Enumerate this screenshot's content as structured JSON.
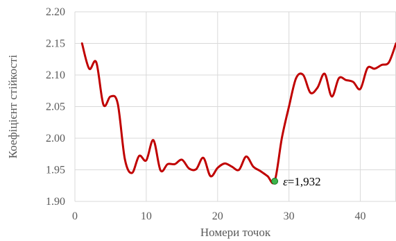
{
  "chart_data": {
    "type": "line",
    "xlabel": "Номери точок",
    "ylabel": "Коефіцієнт стійкості",
    "xlim": [
      0,
      45
    ],
    "ylim": [
      1.9,
      2.2
    ],
    "x_ticks": [
      0,
      10,
      20,
      30,
      40
    ],
    "x_tick_labels": [
      "0",
      "10",
      "20",
      "30",
      "40"
    ],
    "y_ticks": [
      1.9,
      1.95,
      2.0,
      2.05,
      2.1,
      2.15,
      2.2
    ],
    "y_tick_labels": [
      "1.90",
      "1.95",
      "2.00",
      "2.05",
      "2.10",
      "2.15",
      "2.20"
    ],
    "grid": {
      "x": true,
      "y": true
    },
    "legend": "none",
    "series": [
      {
        "color": "#C00000",
        "x": [
          1,
          2,
          3,
          4,
          5,
          6,
          7,
          8,
          9,
          10,
          11,
          12,
          13,
          14,
          15,
          16,
          17,
          18,
          19,
          20,
          21,
          22,
          23,
          24,
          25,
          26,
          27,
          28,
          29,
          30,
          31,
          32,
          33,
          34,
          35,
          36,
          37,
          38,
          39,
          40,
          41,
          42,
          43,
          44,
          45
        ],
        "y": [
          2.15,
          2.11,
          2.12,
          2.053,
          2.066,
          2.055,
          1.967,
          1.945,
          1.972,
          1.965,
          1.997,
          1.949,
          1.959,
          1.959,
          1.966,
          1.952,
          1.951,
          1.969,
          1.94,
          1.953,
          1.96,
          1.955,
          1.95,
          1.971,
          1.955,
          1.948,
          1.94,
          1.932,
          2.0,
          2.05,
          2.095,
          2.1,
          2.072,
          2.08,
          2.102,
          2.066,
          2.095,
          2.092,
          2.089,
          2.078,
          2.111,
          2.11,
          2.116,
          2.12,
          2.15
        ]
      }
    ],
    "annotations": [
      {
        "symbol": "ε",
        "text": "=1,932",
        "x": 28,
        "y": 1.932,
        "marker_color": "#3CB44B"
      }
    ]
  }
}
